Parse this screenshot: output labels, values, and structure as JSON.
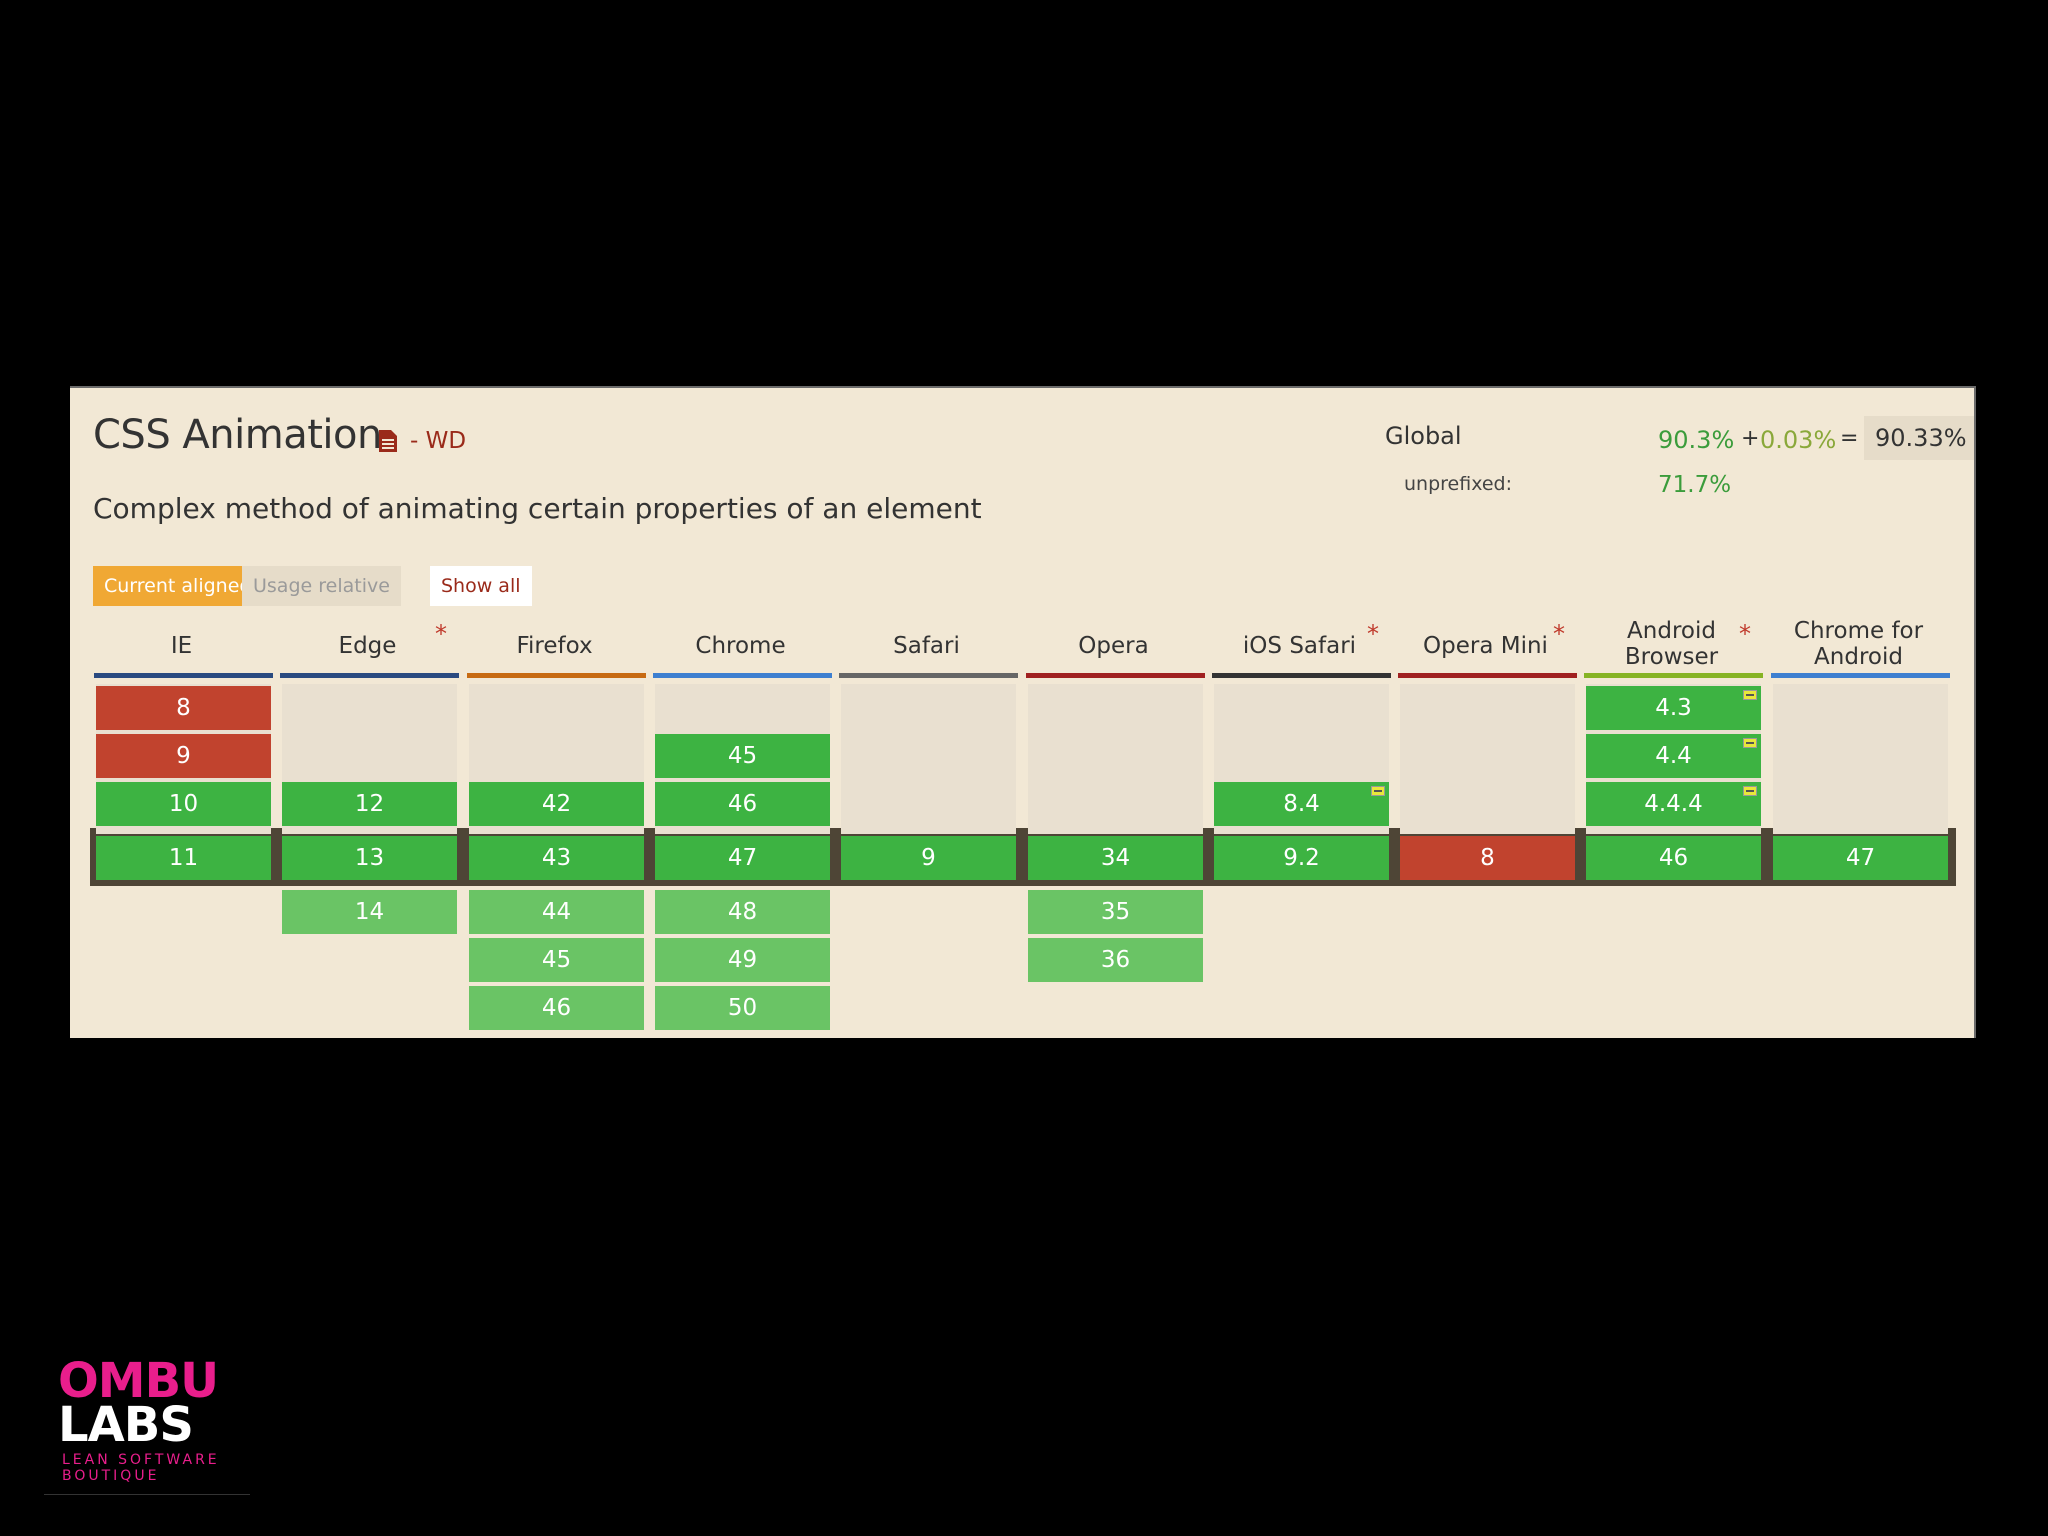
{
  "feature": {
    "title": "CSS Animation",
    "spec_status": "- WD",
    "description": "Complex method of animating certain properties of an element"
  },
  "usage": {
    "global_label": "Global",
    "unprefixed_label": "unprefixed:",
    "supported": "90.3%",
    "plus": "+",
    "partial": "0.03%",
    "equals": "=",
    "total": "90.33%",
    "unprefixed": "71.7%"
  },
  "controls": {
    "current_aligned": "Current aligned",
    "usage_relative": "Usage relative",
    "show_all": "Show all"
  },
  "browsers": [
    {
      "name": "IE",
      "color": "#2a4a80",
      "star": false
    },
    {
      "name": "Edge",
      "color": "#2a4a80",
      "star": true
    },
    {
      "name": "Firefox",
      "color": "#c76a12",
      "star": false
    },
    {
      "name": "Chrome",
      "color": "#3d7fd0",
      "star": false
    },
    {
      "name": "Safari",
      "color": "#666666",
      "star": false
    },
    {
      "name": "Opera",
      "color": "#a02020",
      "star": false
    },
    {
      "name": "iOS Safari",
      "color": "#333333",
      "star": true
    },
    {
      "name": "Opera Mini",
      "color": "#a02020",
      "star": true
    },
    {
      "name": "Android Browser",
      "color": "#86b324",
      "star": true
    },
    {
      "name": "Chrome for Android",
      "color": "#3d7fd0",
      "star": false
    }
  ],
  "star_symbol": "*",
  "cells": [
    {
      "col": 0,
      "row": 0,
      "v": "8",
      "s": "red"
    },
    {
      "col": 0,
      "row": 1,
      "v": "9",
      "s": "red"
    },
    {
      "col": 0,
      "row": 2,
      "v": "10",
      "s": "green"
    },
    {
      "col": 0,
      "row": 3,
      "v": "11",
      "s": "green"
    },
    {
      "col": 1,
      "row": 2,
      "v": "12",
      "s": "green"
    },
    {
      "col": 1,
      "row": 3,
      "v": "13",
      "s": "green"
    },
    {
      "col": 1,
      "row": 4,
      "v": "14",
      "s": "lightgreen"
    },
    {
      "col": 2,
      "row": 2,
      "v": "42",
      "s": "green"
    },
    {
      "col": 2,
      "row": 3,
      "v": "43",
      "s": "green"
    },
    {
      "col": 2,
      "row": 4,
      "v": "44",
      "s": "lightgreen"
    },
    {
      "col": 2,
      "row": 5,
      "v": "45",
      "s": "lightgreen"
    },
    {
      "col": 2,
      "row": 6,
      "v": "46",
      "s": "lightgreen"
    },
    {
      "col": 3,
      "row": 1,
      "v": "45",
      "s": "green"
    },
    {
      "col": 3,
      "row": 2,
      "v": "46",
      "s": "green"
    },
    {
      "col": 3,
      "row": 3,
      "v": "47",
      "s": "green"
    },
    {
      "col": 3,
      "row": 4,
      "v": "48",
      "s": "lightgreen"
    },
    {
      "col": 3,
      "row": 5,
      "v": "49",
      "s": "lightgreen"
    },
    {
      "col": 3,
      "row": 6,
      "v": "50",
      "s": "lightgreen"
    },
    {
      "col": 4,
      "row": 3,
      "v": "9",
      "s": "green"
    },
    {
      "col": 5,
      "row": 3,
      "v": "34",
      "s": "green"
    },
    {
      "col": 5,
      "row": 4,
      "v": "35",
      "s": "lightgreen"
    },
    {
      "col": 5,
      "row": 5,
      "v": "36",
      "s": "lightgreen"
    },
    {
      "col": 6,
      "row": 2,
      "v": "8.4",
      "s": "green",
      "partial": true
    },
    {
      "col": 6,
      "row": 3,
      "v": "9.2",
      "s": "green"
    },
    {
      "col": 7,
      "row": 3,
      "v": "8",
      "s": "red"
    },
    {
      "col": 8,
      "row": 0,
      "v": "4.3",
      "s": "green",
      "partial": true
    },
    {
      "col": 8,
      "row": 1,
      "v": "4.4",
      "s": "green",
      "partial": true
    },
    {
      "col": 8,
      "row": 2,
      "v": "4.4.4",
      "s": "green",
      "partial": true
    },
    {
      "col": 8,
      "row": 3,
      "v": "46",
      "s": "green"
    },
    {
      "col": 9,
      "row": 3,
      "v": "47",
      "s": "green"
    }
  ],
  "logo": {
    "line1": "OMBU",
    "line2": "LABS",
    "tagline": "LEAN SOFTWARE BOUTIQUE"
  }
}
